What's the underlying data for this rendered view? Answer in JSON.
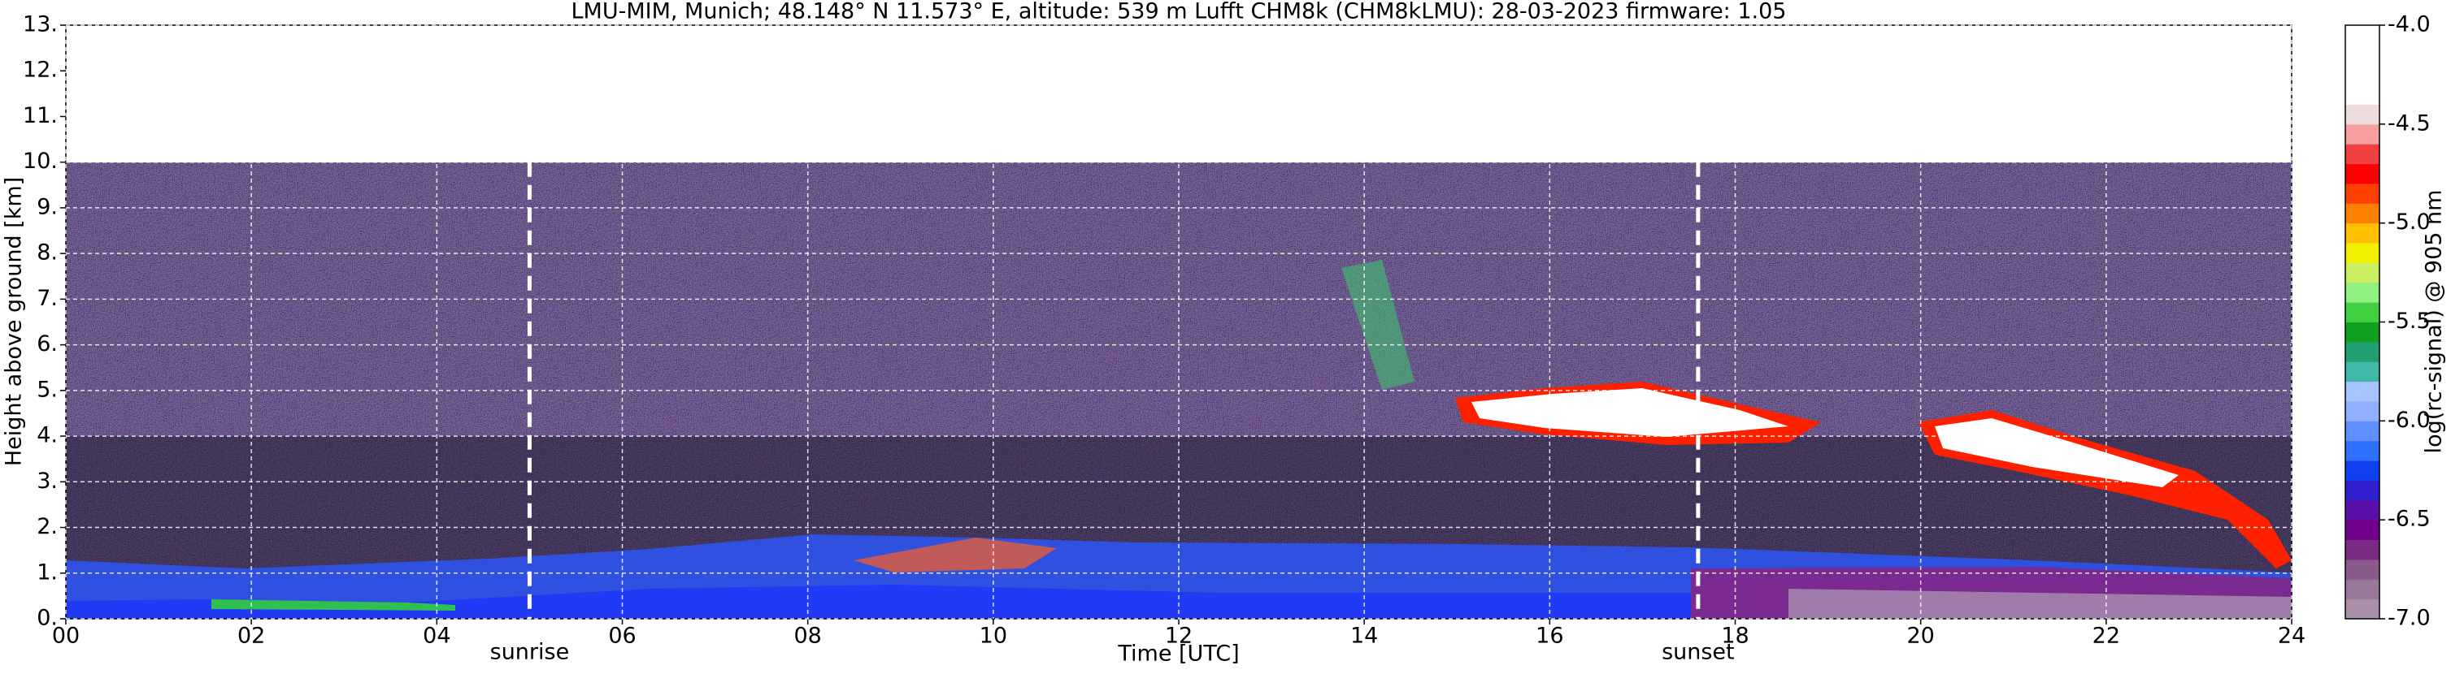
{
  "chart_data": {
    "type": "heatmap",
    "title": "LMU-MIM, Munich; 48.148° N 11.573° E, altitude: 539 m    Lufft CHM8k (CHM8kLMU): 28-03-2023    firmware: 1.05",
    "xlabel": "Time [UTC]",
    "ylabel": "Height above ground [km]",
    "xlim": [
      0,
      24
    ],
    "xticks": [
      {
        "value": 0,
        "label": "00"
      },
      {
        "value": 2,
        "label": "02"
      },
      {
        "value": 4,
        "label": "04"
      },
      {
        "value": 6,
        "label": "06"
      },
      {
        "value": 8,
        "label": "08"
      },
      {
        "value": 10,
        "label": "10"
      },
      {
        "value": 12,
        "label": "12"
      },
      {
        "value": 14,
        "label": "14"
      },
      {
        "value": 16,
        "label": "16"
      },
      {
        "value": 18,
        "label": "18"
      },
      {
        "value": 20,
        "label": "20"
      },
      {
        "value": 22,
        "label": "22"
      },
      {
        "value": 24,
        "label": "24"
      }
    ],
    "ylim": [
      0,
      13
    ],
    "yticks": [
      {
        "value": 0,
        "label": "0."
      },
      {
        "value": 1,
        "label": "1."
      },
      {
        "value": 2,
        "label": "2."
      },
      {
        "value": 3,
        "label": "3."
      },
      {
        "value": 4,
        "label": "4."
      },
      {
        "value": 5,
        "label": "5."
      },
      {
        "value": 6,
        "label": "6."
      },
      {
        "value": 7,
        "label": "7."
      },
      {
        "value": 8,
        "label": "8."
      },
      {
        "value": 9,
        "label": "9."
      },
      {
        "value": 10,
        "label": "10."
      },
      {
        "value": 11,
        "label": "11."
      },
      {
        "value": 12,
        "label": "12."
      },
      {
        "value": 13,
        "label": "13."
      }
    ],
    "grid": true,
    "annotations": [
      {
        "x": 5.0,
        "label": "sunrise"
      },
      {
        "x": 17.6,
        "label": "sunset"
      }
    ],
    "colorbar": {
      "label": "log(rc-signal) @ 905 nm",
      "clim": [
        -7,
        -4
      ],
      "ticks": [
        {
          "value": -7,
          "label": "-7.0"
        },
        {
          "value": -6.5,
          "label": "-6.5"
        },
        {
          "value": -6,
          "label": "-6.0"
        },
        {
          "value": -5.5,
          "label": "-5.5"
        },
        {
          "value": -5,
          "label": "-5.0"
        },
        {
          "value": -4.5,
          "label": "-4.5"
        },
        {
          "value": -4,
          "label": "-4.0"
        }
      ],
      "colors": [
        "#a890a8",
        "#987898",
        "#8a5a8a",
        "#7a2a80",
        "#70008a",
        "#5a10a8",
        "#3020d0",
        "#1040f0",
        "#3070ff",
        "#6090ff",
        "#90b0ff",
        "#a8c4ff",
        "#40b8a8",
        "#20a070",
        "#10a020",
        "#40d040",
        "#90f080",
        "#c8f060",
        "#f0f000",
        "#ffc000",
        "#ff8000",
        "#ff4000",
        "#ff0000",
        "#f04040",
        "#f8a0a0",
        "#ecdcdc",
        "#ffffff",
        "#ffffff",
        "#ffffff",
        "#ffffff"
      ]
    }
  }
}
